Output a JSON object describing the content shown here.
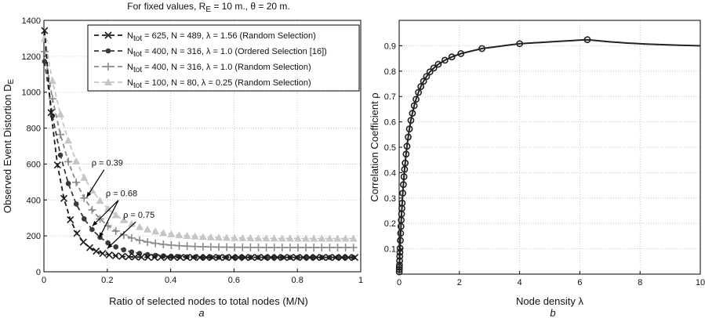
{
  "header": {
    "prefix": "For fixed values, R",
    "sub": "E",
    "suffix": " = 10 m., θ = 20 m."
  },
  "panels": {
    "left": "a",
    "right": "b"
  },
  "chart_data": [
    {
      "type": "line",
      "xlabel": "Ratio of selected nodes to total nodes (M/N)",
      "ylabel": "Observed Event Distortion D",
      "ylabel_sub": "E",
      "xlim": [
        0,
        1
      ],
      "ylim": [
        0,
        1400
      ],
      "xticks": [
        0,
        0.2,
        0.4,
        0.6,
        0.8,
        1
      ],
      "xtick_labels": [
        "0",
        "0.2",
        "0.4",
        "0.6",
        "0.8",
        "1"
      ],
      "yticks": [
        0,
        200,
        400,
        600,
        800,
        1000,
        1200,
        1400
      ],
      "ytick_labels": [
        "0",
        "200",
        "400",
        "600",
        "800",
        "1000",
        "1200",
        "1400"
      ],
      "grid": true,
      "legend": "top-right",
      "series": [
        {
          "pre": "N",
          "sub": "tot",
          "name": " = 625, N = 489, λ = 1.56 (Random Selection)",
          "color": "#1a1a1a",
          "marker": "x",
          "params": {
            "start": 1400,
            "asym": 80,
            "k": 22,
            "n": 49
          }
        },
        {
          "pre": "N",
          "sub": "tot",
          "name": " = 400, N = 316, λ = 1.0 (Ordered Selection [16])",
          "color": "#3a3a3a",
          "marker": "circle",
          "params": {
            "start": 1200,
            "asym": 80,
            "k": 13,
            "n": 40
          }
        },
        {
          "pre": "N",
          "sub": "tot",
          "name": " = 400, N = 316, λ = 1.0 (Random Selection)",
          "color": "#8a8a8a",
          "marker": "plus",
          "params": {
            "start": 1250,
            "asym": 135,
            "k": 11,
            "n": 40
          }
        },
        {
          "pre": "N",
          "sub": "tot",
          "name": " = 100, N = 80, λ = 0.25 (Random Selection)",
          "color": "#c6c6c6",
          "marker": "triangle",
          "params": {
            "start": 1320,
            "asym": 185,
            "k": 9.5,
            "n": 40
          }
        }
      ],
      "annotations": [
        {
          "text": "ρ = 0.39",
          "at": [
            0.2,
            590
          ],
          "points": [
            [
              0.135,
              415
            ]
          ]
        },
        {
          "text": "ρ = 0.68",
          "at": [
            0.245,
            420
          ],
          "points": [
            [
              0.153,
              255
            ],
            [
              0.175,
              190
            ]
          ]
        },
        {
          "text": "ρ = 0.75",
          "at": [
            0.3,
            300
          ],
          "points": [
            [
              0.2,
              130
            ]
          ]
        }
      ]
    },
    {
      "type": "line",
      "xlabel": "Node density λ",
      "ylabel": "Correlation Coefficient ρ",
      "xlim": [
        0,
        10
      ],
      "ylim": [
        0,
        1
      ],
      "xticks": [
        0,
        2,
        4,
        6,
        8,
        10
      ],
      "xtick_labels": [
        "0",
        "2",
        "4",
        "6",
        "8",
        "10"
      ],
      "yticks": [
        0.1,
        0.2,
        0.3,
        0.4,
        0.5,
        0.6,
        0.7,
        0.8,
        0.9
      ],
      "ytick_labels": [
        "0.1",
        "0.2",
        "0.3",
        "0.4",
        "0.5",
        "0.6",
        "0.7",
        "0.8",
        "0.9"
      ],
      "grid": true,
      "color": "#222222",
      "marker": "circle-open",
      "x": [
        0.0025,
        0.005,
        0.0075,
        0.01,
        0.015,
        0.02,
        0.025,
        0.03,
        0.04,
        0.05,
        0.06,
        0.07,
        0.08,
        0.09,
        0.1,
        0.12,
        0.14,
        0.16,
        0.18,
        0.2,
        0.23,
        0.26,
        0.3,
        0.34,
        0.39,
        0.44,
        0.5,
        0.56,
        0.64,
        0.72,
        0.81,
        0.91,
        1.02,
        1.15,
        1.3,
        1.52,
        1.75,
        2.05,
        2.75,
        4.0,
        6.25
      ],
      "y": [
        0.009,
        0.018,
        0.027,
        0.036,
        0.053,
        0.07,
        0.086,
        0.102,
        0.133,
        0.161,
        0.188,
        0.213,
        0.237,
        0.259,
        0.28,
        0.319,
        0.353,
        0.384,
        0.413,
        0.438,
        0.473,
        0.504,
        0.54,
        0.572,
        0.606,
        0.634,
        0.664,
        0.689,
        0.716,
        0.739,
        0.76,
        0.779,
        0.797,
        0.812,
        0.827,
        0.843,
        0.856,
        0.869,
        0.889,
        0.908,
        0.924
      ]
    }
  ]
}
